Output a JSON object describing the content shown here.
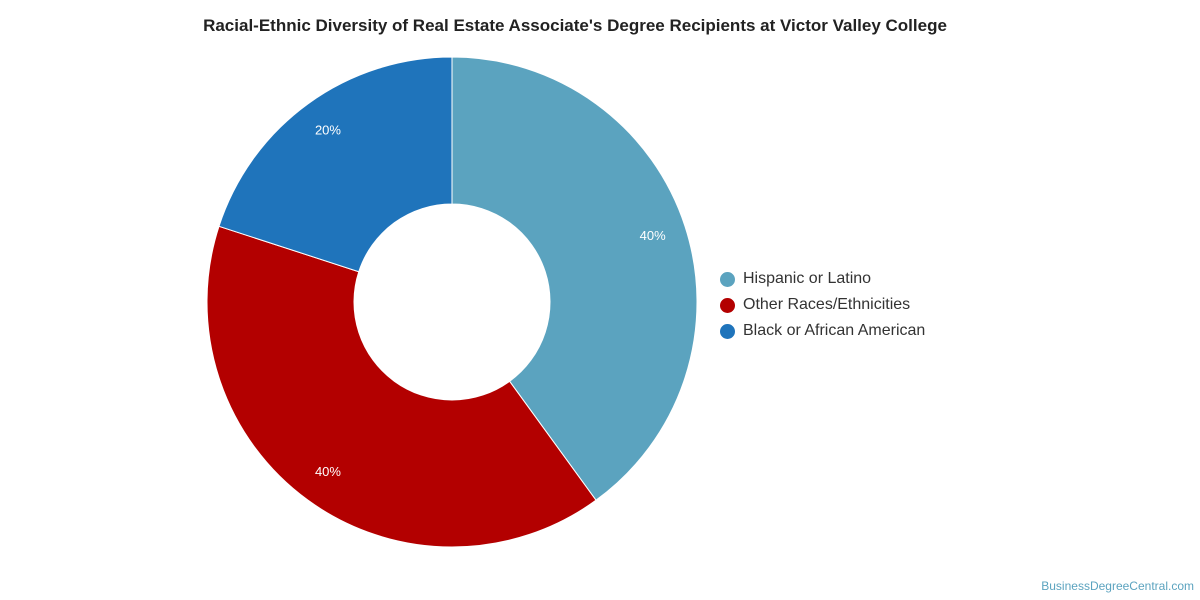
{
  "chart_data": {
    "type": "pie",
    "title": "Racial-Ethnic Diversity of Real Estate Associate's Degree Recipients at Victor Valley College",
    "variant": "donut",
    "start_angle_deg": 0,
    "direction": "clockwise",
    "legend_position": "right",
    "slices": [
      {
        "label": "Hispanic or Latino",
        "value": 40,
        "value_label": "40%",
        "color": "#5ba3bf"
      },
      {
        "label": "Other Races/Ethnicities",
        "value": 40,
        "value_label": "40%",
        "color": "#b30000"
      },
      {
        "label": "Black or African American",
        "value": 20,
        "value_label": "20%",
        "color": "#1f74bb"
      }
    ]
  },
  "watermark": "BusinessDegreeCentral.com"
}
